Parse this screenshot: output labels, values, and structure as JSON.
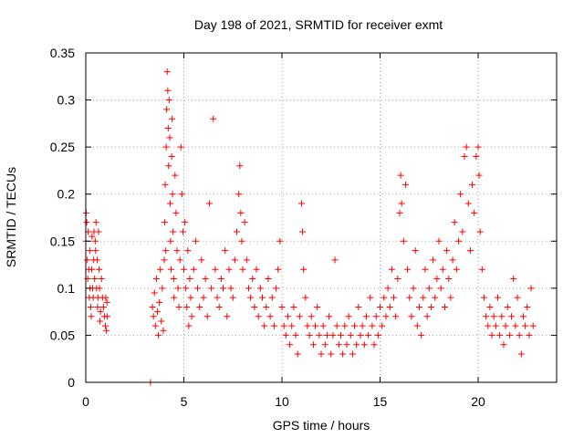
{
  "chart_data": {
    "type": "scatter",
    "title": "Day 198 of 2021, SRMTID for receiver exmt",
    "xlabel": "GPS time / hours",
    "ylabel": "SRMTID / TECUs",
    "xlim": [
      0,
      24
    ],
    "ylim": [
      0,
      0.35
    ],
    "xticks": [
      0,
      5,
      10,
      15,
      20
    ],
    "xtick_labels": [
      "0",
      "5",
      "10",
      "15",
      "20"
    ],
    "yticks": [
      0,
      0.05,
      0.1,
      0.15,
      0.2,
      0.25,
      0.3,
      0.35
    ],
    "ytick_labels": [
      "0",
      "0.05",
      "0.1",
      "0.15",
      "0.2",
      "0.25",
      "0.3",
      "0.35"
    ],
    "grid": true,
    "marker": "plus",
    "color": "#ff0000",
    "series": [
      {
        "name": "SRMTID",
        "points": [
          [
            0.0,
            0.15
          ],
          [
            0.02,
            0.18
          ],
          [
            0.05,
            0.17
          ],
          [
            0.08,
            0.13
          ],
          [
            0.1,
            0.11
          ],
          [
            0.12,
            0.16
          ],
          [
            0.15,
            0.12
          ],
          [
            0.18,
            0.09
          ],
          [
            0.2,
            0.14
          ],
          [
            0.22,
            0.1
          ],
          [
            0.25,
            0.08
          ],
          [
            0.28,
            0.07
          ],
          [
            0.3,
            0.12
          ],
          [
            0.32,
            0.155
          ],
          [
            0.35,
            0.1
          ],
          [
            0.38,
            0.09
          ],
          [
            0.4,
            0.13
          ],
          [
            0.42,
            0.16
          ],
          [
            0.45,
            0.11
          ],
          [
            0.48,
            0.15
          ],
          [
            0.5,
            0.14
          ],
          [
            0.52,
            0.17
          ],
          [
            0.55,
            0.1
          ],
          [
            0.58,
            0.13
          ],
          [
            0.6,
            0.08
          ],
          [
            0.62,
            0.09
          ],
          [
            0.65,
            0.16
          ],
          [
            0.68,
            0.12
          ],
          [
            0.7,
            0.1
          ],
          [
            0.72,
            0.065
          ],
          [
            0.75,
            0.075
          ],
          [
            0.8,
            0.11
          ],
          [
            0.85,
            0.09
          ],
          [
            0.9,
            0.08
          ],
          [
            0.95,
            0.07
          ],
          [
            1.0,
            0.06
          ],
          [
            1.02,
            0.09
          ],
          [
            1.05,
            0.055
          ],
          [
            1.08,
            0.085
          ],
          [
            1.1,
            0.07
          ],
          [
            3.3,
            0.0
          ],
          [
            3.4,
            0.08
          ],
          [
            3.45,
            0.07
          ],
          [
            3.5,
            0.095
          ],
          [
            3.55,
            0.06
          ],
          [
            3.6,
            0.11
          ],
          [
            3.65,
            0.075
          ],
          [
            3.7,
            0.05
          ],
          [
            3.75,
            0.085
          ],
          [
            3.8,
            0.12
          ],
          [
            3.85,
            0.065
          ],
          [
            3.9,
            0.1
          ],
          [
            3.95,
            0.055
          ],
          [
            4.0,
            0.13
          ],
          [
            4.02,
            0.17
          ],
          [
            4.05,
            0.21
          ],
          [
            4.08,
            0.14
          ],
          [
            4.1,
            0.25
          ],
          [
            4.12,
            0.29
          ],
          [
            4.15,
            0.33
          ],
          [
            4.18,
            0.31
          ],
          [
            4.2,
            0.27
          ],
          [
            4.22,
            0.23
          ],
          [
            4.25,
            0.3
          ],
          [
            4.28,
            0.26
          ],
          [
            4.3,
            0.19
          ],
          [
            4.32,
            0.15
          ],
          [
            4.35,
            0.12
          ],
          [
            4.38,
            0.24
          ],
          [
            4.4,
            0.28
          ],
          [
            4.42,
            0.2
          ],
          [
            4.45,
            0.16
          ],
          [
            4.48,
            0.11
          ],
          [
            4.5,
            0.09
          ],
          [
            4.55,
            0.22
          ],
          [
            4.6,
            0.18
          ],
          [
            4.65,
            0.14
          ],
          [
            4.7,
            0.1
          ],
          [
            4.75,
            0.08
          ],
          [
            4.8,
            0.13
          ],
          [
            4.85,
            0.25
          ],
          [
            4.9,
            0.2
          ],
          [
            4.95,
            0.16
          ],
          [
            5.0,
            0.12
          ],
          [
            5.05,
            0.17
          ],
          [
            5.1,
            0.1
          ],
          [
            5.15,
            0.08
          ],
          [
            5.2,
            0.14
          ],
          [
            5.25,
            0.06
          ],
          [
            5.3,
            0.11
          ],
          [
            5.35,
            0.09
          ],
          [
            5.4,
            0.07
          ],
          [
            5.5,
            0.12
          ],
          [
            5.6,
            0.15
          ],
          [
            5.7,
            0.1
          ],
          [
            5.8,
            0.08
          ],
          [
            5.9,
            0.13
          ],
          [
            6.0,
            0.09
          ],
          [
            6.1,
            0.11
          ],
          [
            6.2,
            0.07
          ],
          [
            6.3,
            0.19
          ],
          [
            6.4,
            0.1
          ],
          [
            6.5,
            0.28
          ],
          [
            6.6,
            0.12
          ],
          [
            6.7,
            0.09
          ],
          [
            6.8,
            0.08
          ],
          [
            6.9,
            0.11
          ],
          [
            7.0,
            0.1
          ],
          [
            7.1,
            0.14
          ],
          [
            7.2,
            0.07
          ],
          [
            7.3,
            0.12
          ],
          [
            7.4,
            0.1
          ],
          [
            7.5,
            0.09
          ],
          [
            7.6,
            0.13
          ],
          [
            7.7,
            0.16
          ],
          [
            7.8,
            0.2
          ],
          [
            7.85,
            0.23
          ],
          [
            7.9,
            0.18
          ],
          [
            7.95,
            0.15
          ],
          [
            8.0,
            0.12
          ],
          [
            8.1,
            0.17
          ],
          [
            8.2,
            0.13
          ],
          [
            8.3,
            0.1
          ],
          [
            8.4,
            0.09
          ],
          [
            8.5,
            0.11
          ],
          [
            8.6,
            0.08
          ],
          [
            8.7,
            0.12
          ],
          [
            8.8,
            0.07
          ],
          [
            8.9,
            0.1
          ],
          [
            9.0,
            0.09
          ],
          [
            9.1,
            0.06
          ],
          [
            9.2,
            0.08
          ],
          [
            9.3,
            0.11
          ],
          [
            9.4,
            0.07
          ],
          [
            9.5,
            0.09
          ],
          [
            9.6,
            0.06
          ],
          [
            9.7,
            0.1
          ],
          [
            9.8,
            0.12
          ],
          [
            9.9,
            0.15
          ],
          [
            10.0,
            0.08
          ],
          [
            10.1,
            0.06
          ],
          [
            10.2,
            0.05
          ],
          [
            10.3,
            0.07
          ],
          [
            10.4,
            0.04
          ],
          [
            10.5,
            0.06
          ],
          [
            10.6,
            0.08
          ],
          [
            10.7,
            0.05
          ],
          [
            10.8,
            0.03
          ],
          [
            10.9,
            0.07
          ],
          [
            11.0,
            0.19
          ],
          [
            11.05,
            0.16
          ],
          [
            11.1,
            0.12
          ],
          [
            11.2,
            0.09
          ],
          [
            11.3,
            0.06
          ],
          [
            11.4,
            0.05
          ],
          [
            11.5,
            0.07
          ],
          [
            11.6,
            0.04
          ],
          [
            11.7,
            0.06
          ],
          [
            11.8,
            0.08
          ],
          [
            11.9,
            0.05
          ],
          [
            12.0,
            0.03
          ],
          [
            12.1,
            0.06
          ],
          [
            12.2,
            0.04
          ],
          [
            12.3,
            0.05
          ],
          [
            12.4,
            0.07
          ],
          [
            12.5,
            0.03
          ],
          [
            12.6,
            0.05
          ],
          [
            12.7,
            0.13
          ],
          [
            12.8,
            0.06
          ],
          [
            12.9,
            0.04
          ],
          [
            13.0,
            0.05
          ],
          [
            13.1,
            0.03
          ],
          [
            13.2,
            0.06
          ],
          [
            13.3,
            0.04
          ],
          [
            13.4,
            0.07
          ],
          [
            13.5,
            0.05
          ],
          [
            13.6,
            0.03
          ],
          [
            13.7,
            0.06
          ],
          [
            13.8,
            0.04
          ],
          [
            13.9,
            0.08
          ],
          [
            14.0,
            0.05
          ],
          [
            14.1,
            0.06
          ],
          [
            14.2,
            0.04
          ],
          [
            14.3,
            0.07
          ],
          [
            14.4,
            0.05
          ],
          [
            14.5,
            0.09
          ],
          [
            14.6,
            0.06
          ],
          [
            14.7,
            0.04
          ],
          [
            14.8,
            0.07
          ],
          [
            14.9,
            0.05
          ],
          [
            15.0,
            0.08
          ],
          [
            15.1,
            0.06
          ],
          [
            15.2,
            0.09
          ],
          [
            15.3,
            0.07
          ],
          [
            15.4,
            0.1
          ],
          [
            15.5,
            0.08
          ],
          [
            15.6,
            0.12
          ],
          [
            15.7,
            0.09
          ],
          [
            15.8,
            0.07
          ],
          [
            15.9,
            0.11
          ],
          [
            16.0,
            0.18
          ],
          [
            16.05,
            0.22
          ],
          [
            16.1,
            0.19
          ],
          [
            16.2,
            0.15
          ],
          [
            16.3,
            0.21
          ],
          [
            16.4,
            0.12
          ],
          [
            16.5,
            0.09
          ],
          [
            16.6,
            0.07
          ],
          [
            16.7,
            0.1
          ],
          [
            16.8,
            0.14
          ],
          [
            16.9,
            0.06
          ],
          [
            17.0,
            0.08
          ],
          [
            17.1,
            0.05
          ],
          [
            17.2,
            0.09
          ],
          [
            17.3,
            0.12
          ],
          [
            17.4,
            0.07
          ],
          [
            17.5,
            0.1
          ],
          [
            17.6,
            0.08
          ],
          [
            17.7,
            0.13
          ],
          [
            17.8,
            0.09
          ],
          [
            17.9,
            0.11
          ],
          [
            18.0,
            0.15
          ],
          [
            18.1,
            0.1
          ],
          [
            18.2,
            0.12
          ],
          [
            18.3,
            0.08
          ],
          [
            18.4,
            0.14
          ],
          [
            18.5,
            0.11
          ],
          [
            18.6,
            0.09
          ],
          [
            18.7,
            0.13
          ],
          [
            18.8,
            0.17
          ],
          [
            18.9,
            0.12
          ],
          [
            19.0,
            0.15
          ],
          [
            19.1,
            0.2
          ],
          [
            19.2,
            0.16
          ],
          [
            19.3,
            0.24
          ],
          [
            19.4,
            0.25
          ],
          [
            19.5,
            0.19
          ],
          [
            19.6,
            0.14
          ],
          [
            19.7,
            0.21
          ],
          [
            19.8,
            0.18
          ],
          [
            19.9,
            0.24
          ],
          [
            20.0,
            0.25
          ],
          [
            20.05,
            0.22
          ],
          [
            20.1,
            0.16
          ],
          [
            20.2,
            0.12
          ],
          [
            20.3,
            0.09
          ],
          [
            20.4,
            0.07
          ],
          [
            20.5,
            0.06
          ],
          [
            20.6,
            0.08
          ],
          [
            20.7,
            0.05
          ],
          [
            20.8,
            0.07
          ],
          [
            20.9,
            0.06
          ],
          [
            21.0,
            0.09
          ],
          [
            21.1,
            0.05
          ],
          [
            21.2,
            0.07
          ],
          [
            21.3,
            0.04
          ],
          [
            21.4,
            0.06
          ],
          [
            21.5,
            0.08
          ],
          [
            21.6,
            0.05
          ],
          [
            21.7,
            0.07
          ],
          [
            21.8,
            0.11
          ],
          [
            21.9,
            0.06
          ],
          [
            22.0,
            0.09
          ],
          [
            22.1,
            0.05
          ],
          [
            22.2,
            0.03
          ],
          [
            22.3,
            0.07
          ],
          [
            22.4,
            0.06
          ],
          [
            22.5,
            0.08
          ],
          [
            22.6,
            0.05
          ],
          [
            22.7,
            0.1
          ],
          [
            22.8,
            0.06
          ]
        ]
      }
    ]
  }
}
